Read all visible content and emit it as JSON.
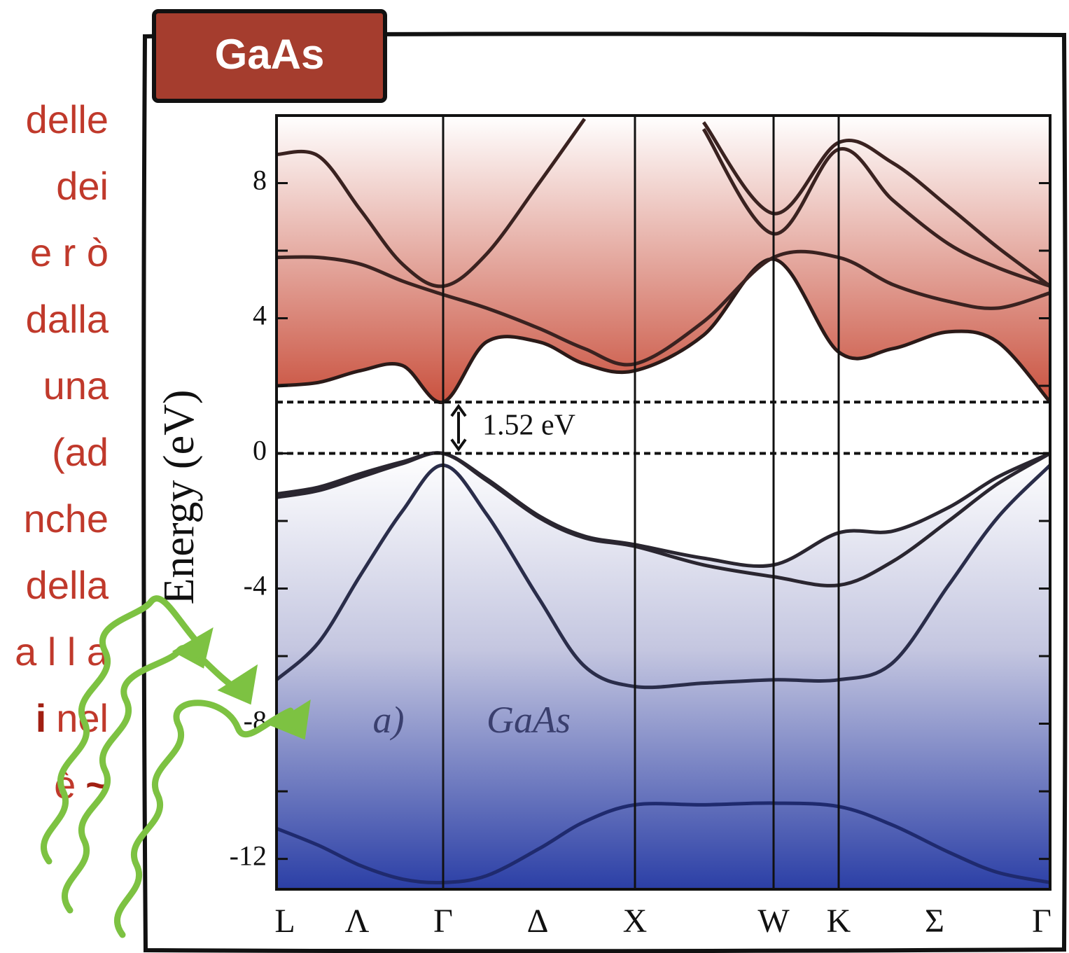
{
  "side_text": [
    [
      {
        "text": "delle"
      }
    ],
    [
      {
        "text": "dei"
      }
    ],
    [
      {
        "text": "e r ò"
      }
    ],
    [
      {
        "text": "dalla"
      }
    ],
    [
      {
        "text": "una"
      }
    ],
    [
      {
        "text": "(ad"
      }
    ],
    [
      {
        "text": "nche"
      }
    ],
    [
      {
        "text": "della"
      }
    ],
    [
      {
        "text": "a l l a"
      }
    ],
    [
      {
        "text": "i",
        "bold": true
      },
      {
        "text": "nel"
      }
    ],
    [
      {
        "text": "è"
      },
      {
        "text": "~",
        "bold": true
      }
    ]
  ],
  "chart_data": {
    "type": "line",
    "badge": "GaAs",
    "ylabel": "Energy (eV)",
    "x": [
      0,
      0.6,
      1.2,
      1.8,
      2.38,
      3.0,
      3.75,
      4.4,
      5.12,
      6.1,
      7.1,
      8.03,
      8.8,
      9.6,
      10.3,
      11.05
    ],
    "xlim": [
      0,
      11.05
    ],
    "xticks": [
      {
        "value": 0,
        "label": "L"
      },
      {
        "value": 1.15,
        "label": "Λ"
      },
      {
        "value": 2.38,
        "label": "Γ"
      },
      {
        "value": 3.73,
        "label": "Δ"
      },
      {
        "value": 5.12,
        "label": "X"
      },
      {
        "value": 7.1,
        "label": "W"
      },
      {
        "value": 8.03,
        "label": "K"
      },
      {
        "value": 9.4,
        "label": "Σ"
      },
      {
        "value": 11.05,
        "label": "Γ"
      }
    ],
    "xgrid": [
      false,
      false,
      true,
      false,
      true,
      true,
      true,
      false,
      false
    ],
    "ylim": [
      -12.9,
      10
    ],
    "yticks": [
      -12,
      -8,
      -4,
      0,
      4,
      8
    ],
    "yminorticks": [
      -10,
      -6,
      -2,
      2,
      6
    ],
    "band_gap": {
      "lower": 0,
      "upper": 1.52,
      "label": "1.52 eV"
    },
    "annotations": [
      {
        "text": "a)",
        "x": 1.15,
        "y": -8
      },
      {
        "text": "GaAs",
        "x": 3.6,
        "y": -8
      }
    ],
    "series": [
      {
        "color": "#1f2a6e",
        "values": [
          -11.1,
          -11.6,
          -12.2,
          -12.6,
          -12.7,
          -12.5,
          -11.7,
          -10.9,
          -10.4,
          -10.4,
          -10.35,
          -10.45,
          -11.0,
          -11.8,
          -12.4,
          -12.7
        ]
      },
      {
        "color": "#2a2d4a",
        "values": [
          -6.7,
          -5.6,
          -3.6,
          -1.7,
          -0.35,
          -1.8,
          -4.3,
          -6.3,
          -6.9,
          -6.8,
          -6.7,
          -6.7,
          -6.2,
          -3.9,
          -1.9,
          -0.35
        ]
      },
      {
        "color": "#2a2630",
        "values": [
          -1.3,
          -1.1,
          -0.7,
          -0.3,
          0,
          -0.8,
          -1.9,
          -2.5,
          -2.75,
          -3.3,
          -3.65,
          -3.9,
          -3.2,
          -2.0,
          -0.9,
          0
        ]
      },
      {
        "color": "#2a2630",
        "values": [
          -1.2,
          -1.0,
          -0.6,
          -0.25,
          0,
          -0.75,
          -1.85,
          -2.45,
          -2.7,
          -3.1,
          -3.3,
          -2.35,
          -2.3,
          -1.6,
          -0.7,
          0
        ]
      },
      {
        "color": "#2b1a18",
        "values": [
          2.0,
          2.1,
          2.45,
          2.6,
          1.52,
          3.3,
          3.3,
          2.65,
          2.45,
          3.5,
          5.75,
          3.0,
          3.1,
          3.6,
          3.3,
          1.52
        ]
      },
      {
        "color": "#3a2220",
        "values": [
          5.8,
          5.8,
          5.6,
          5.1,
          4.7,
          4.3,
          3.7,
          3.1,
          2.65,
          3.9,
          5.8,
          5.8,
          5.0,
          4.5,
          4.3,
          4.75
        ]
      },
      {
        "color": "#3a2220",
        "values": [
          8.85,
          8.8,
          7.2,
          5.6,
          4.95,
          5.9,
          8.0,
          9.9,
          null,
          9.6,
          6.5,
          9.0,
          7.5,
          6.2,
          5.5,
          4.95
        ]
      },
      {
        "color": "#3a2220",
        "values": [
          null,
          null,
          null,
          null,
          null,
          null,
          null,
          null,
          null,
          9.8,
          7.1,
          9.2,
          8.6,
          7.3,
          6.1,
          4.95
        ]
      }
    ]
  }
}
